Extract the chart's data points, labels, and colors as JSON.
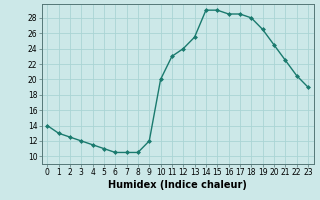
{
  "x": [
    0,
    1,
    2,
    3,
    4,
    5,
    6,
    7,
    8,
    9,
    10,
    11,
    12,
    13,
    14,
    15,
    16,
    17,
    18,
    19,
    20,
    21,
    22,
    23
  ],
  "y": [
    14,
    13,
    12.5,
    12,
    11.5,
    11,
    10.5,
    10.5,
    10.5,
    12,
    20,
    23,
    24,
    25.5,
    29,
    29,
    28.5,
    28.5,
    28,
    26.5,
    24.5,
    22.5,
    20.5,
    19
  ],
  "line_color": "#1a7a6e",
  "marker": "D",
  "marker_size": 2.0,
  "bg_color": "#cce8e8",
  "grid_color": "#aad4d4",
  "xlabel": "Humidex (Indice chaleur)",
  "xlabel_fontsize": 7,
  "ytick_labels": [
    "10",
    "12",
    "14",
    "16",
    "18",
    "20",
    "22",
    "24",
    "26",
    "28"
  ],
  "ytick_values": [
    10,
    12,
    14,
    16,
    18,
    20,
    22,
    24,
    26,
    28
  ],
  "ylim": [
    9.0,
    29.8
  ],
  "xlim": [
    -0.5,
    23.5
  ],
  "xtick_labels": [
    "0",
    "1",
    "2",
    "3",
    "4",
    "5",
    "6",
    "7",
    "8",
    "9",
    "10",
    "11",
    "12",
    "13",
    "14",
    "15",
    "16",
    "17",
    "18",
    "19",
    "20",
    "21",
    "22",
    "23"
  ],
  "tick_fontsize": 5.5,
  "linewidth": 1.0
}
